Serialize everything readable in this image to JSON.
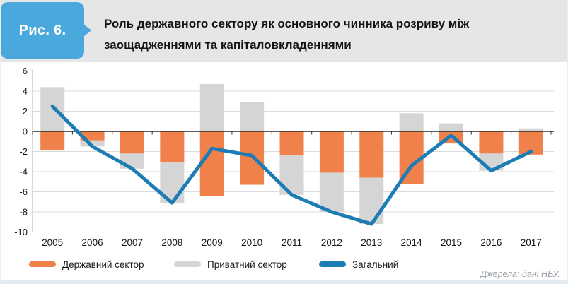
{
  "figure": {
    "badge": "Рис. 6.",
    "title_line1": "Роль державного сектору як основного чинника розриву між",
    "title_line2": "заощадженнями та капіталовкладеннями"
  },
  "source": "Джерела: дані НБУ.",
  "colors": {
    "badge_blue": "#4aa8dc",
    "header_gray": "#e5e6e6",
    "public_orange": "#f0814a",
    "private_gray": "#d5d5d5",
    "total_blue": "#1e7cb5",
    "grid": "#dbdbdb",
    "zero_line": "#2b2b2b",
    "axis_line": "#b3b3b3",
    "axis_text": "#141414",
    "source_gray": "#9aa1a8",
    "bottom_strip": "#e3ebf2"
  },
  "chart_data": {
    "type": "bar",
    "subtype": "stacked-bars-with-line",
    "categories": [
      "2005",
      "2006",
      "2007",
      "2008",
      "2009",
      "2010",
      "2011",
      "2012",
      "2013",
      "2014",
      "2015",
      "2016",
      "2017"
    ],
    "series": [
      {
        "name": "Державний сектор",
        "type": "bar",
        "color": "#f0814a",
        "values": [
          -1.9,
          -0.9,
          -2.2,
          -3.1,
          -6.4,
          -5.3,
          -2.4,
          -4.1,
          -4.6,
          -5.2,
          -1.2,
          -2.2,
          -2.3
        ]
      },
      {
        "name": "Приватний сектор",
        "type": "bar",
        "color": "#d5d5d5",
        "values": [
          4.4,
          -0.6,
          -1.5,
          -4.0,
          4.7,
          2.9,
          -3.9,
          -3.9,
          -4.6,
          1.8,
          0.8,
          -1.7,
          0.3
        ]
      },
      {
        "name": "Загальний",
        "type": "line",
        "color": "#1e7cb5",
        "values": [
          2.5,
          -1.5,
          -3.7,
          -7.1,
          -1.7,
          -2.4,
          -6.3,
          -8.0,
          -9.2,
          -3.4,
          -0.4,
          -3.9,
          -2.0
        ]
      }
    ],
    "title": "Роль державного сектору як основного чинника розриву між заощадженнями та капіталовкладеннями",
    "xlabel": "",
    "ylabel": "",
    "ylim": [
      -10,
      6
    ],
    "ytick_step": 2,
    "grid": true,
    "legend_position": "bottom"
  }
}
